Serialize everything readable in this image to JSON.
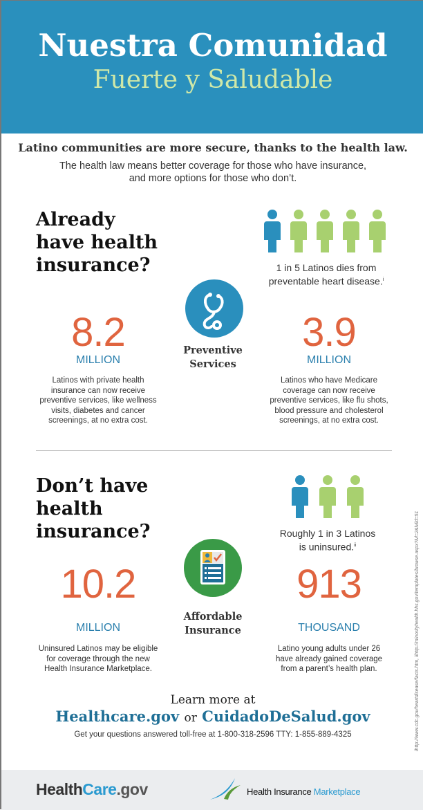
{
  "header": {
    "title": "Nuestra Comunidad",
    "subtitle": "Fuerte y Saludable",
    "bg": "#2a90bd"
  },
  "intro": {
    "tagline": "Latino communities are more secure, thanks to the health law.",
    "line1": "The health law means better coverage for those who have insurance,",
    "line2": "and more options for those who don’t."
  },
  "insured": {
    "question": [
      "Already",
      "have health",
      "insurance?"
    ],
    "people": {
      "highlighted": 1,
      "total": 5
    },
    "caption": [
      "1 in 5 Latinos dies from",
      "preventable heart disease."
    ],
    "caption_note": "i",
    "icon": "stethoscope-icon",
    "icon_label": [
      "Preventive",
      "Services"
    ],
    "stats": [
      {
        "number": "8.2",
        "unit": "MILLION",
        "desc": [
          "Latinos with private health",
          "insurance can now receive",
          "preventive services, like wellness",
          "visits, diabetes and cancer",
          "screenings, at no extra cost."
        ]
      },
      {
        "number": "3.9",
        "unit": "MILLION",
        "desc": [
          "Latinos who have Medicare",
          "coverage can now receive",
          "preventive services, like flu shots,",
          "blood pressure and cholesterol",
          "screenings, at no extra cost."
        ]
      }
    ]
  },
  "uninsured": {
    "question": [
      "Don’t have",
      "health",
      "insurance?"
    ],
    "people": {
      "highlighted": 1,
      "total": 3
    },
    "caption": [
      "Roughly 1 in 3 Latinos",
      "is uninsured."
    ],
    "caption_note": "ii",
    "icon": "insurance-card-icon",
    "icon_label": [
      "Affordable",
      "Insurance"
    ],
    "stats": [
      {
        "number": "10.2",
        "unit": "MILLION",
        "desc": [
          "Uninsured Latinos may be eligible",
          "for coverage through the new",
          "Health Insurance Marketplace."
        ]
      },
      {
        "number": "913",
        "unit": "THOUSAND",
        "desc": [
          "Latino young adults under 26",
          "have already gained coverage",
          "from a parent’s health plan."
        ]
      }
    ]
  },
  "cta": {
    "learn": "Learn more at",
    "link1": "Healthcare.gov",
    "or": "or",
    "link2": "CuidadoDeSalud.gov",
    "phone": "Get your questions answered toll-free at 1-800-318-2596 TTY: 1-855-889-4325"
  },
  "citation": "ihttp://www.cdc.gov/heartdisease/facts.htm, iihttp://minorityhealth.hhs.gov/templates/browse.aspx?lvl=2&lvlid=51",
  "footer": {
    "logo_a": "Health",
    "logo_b": "Care",
    "logo_c": ".gov",
    "marketplace_a": "Health Insurance",
    "marketplace_b": "Marketplace"
  },
  "colors": {
    "orange": "#e0643f",
    "blue": "#2a8fbd",
    "green": "#a8d06f",
    "dark_green": "#3a9a47"
  }
}
